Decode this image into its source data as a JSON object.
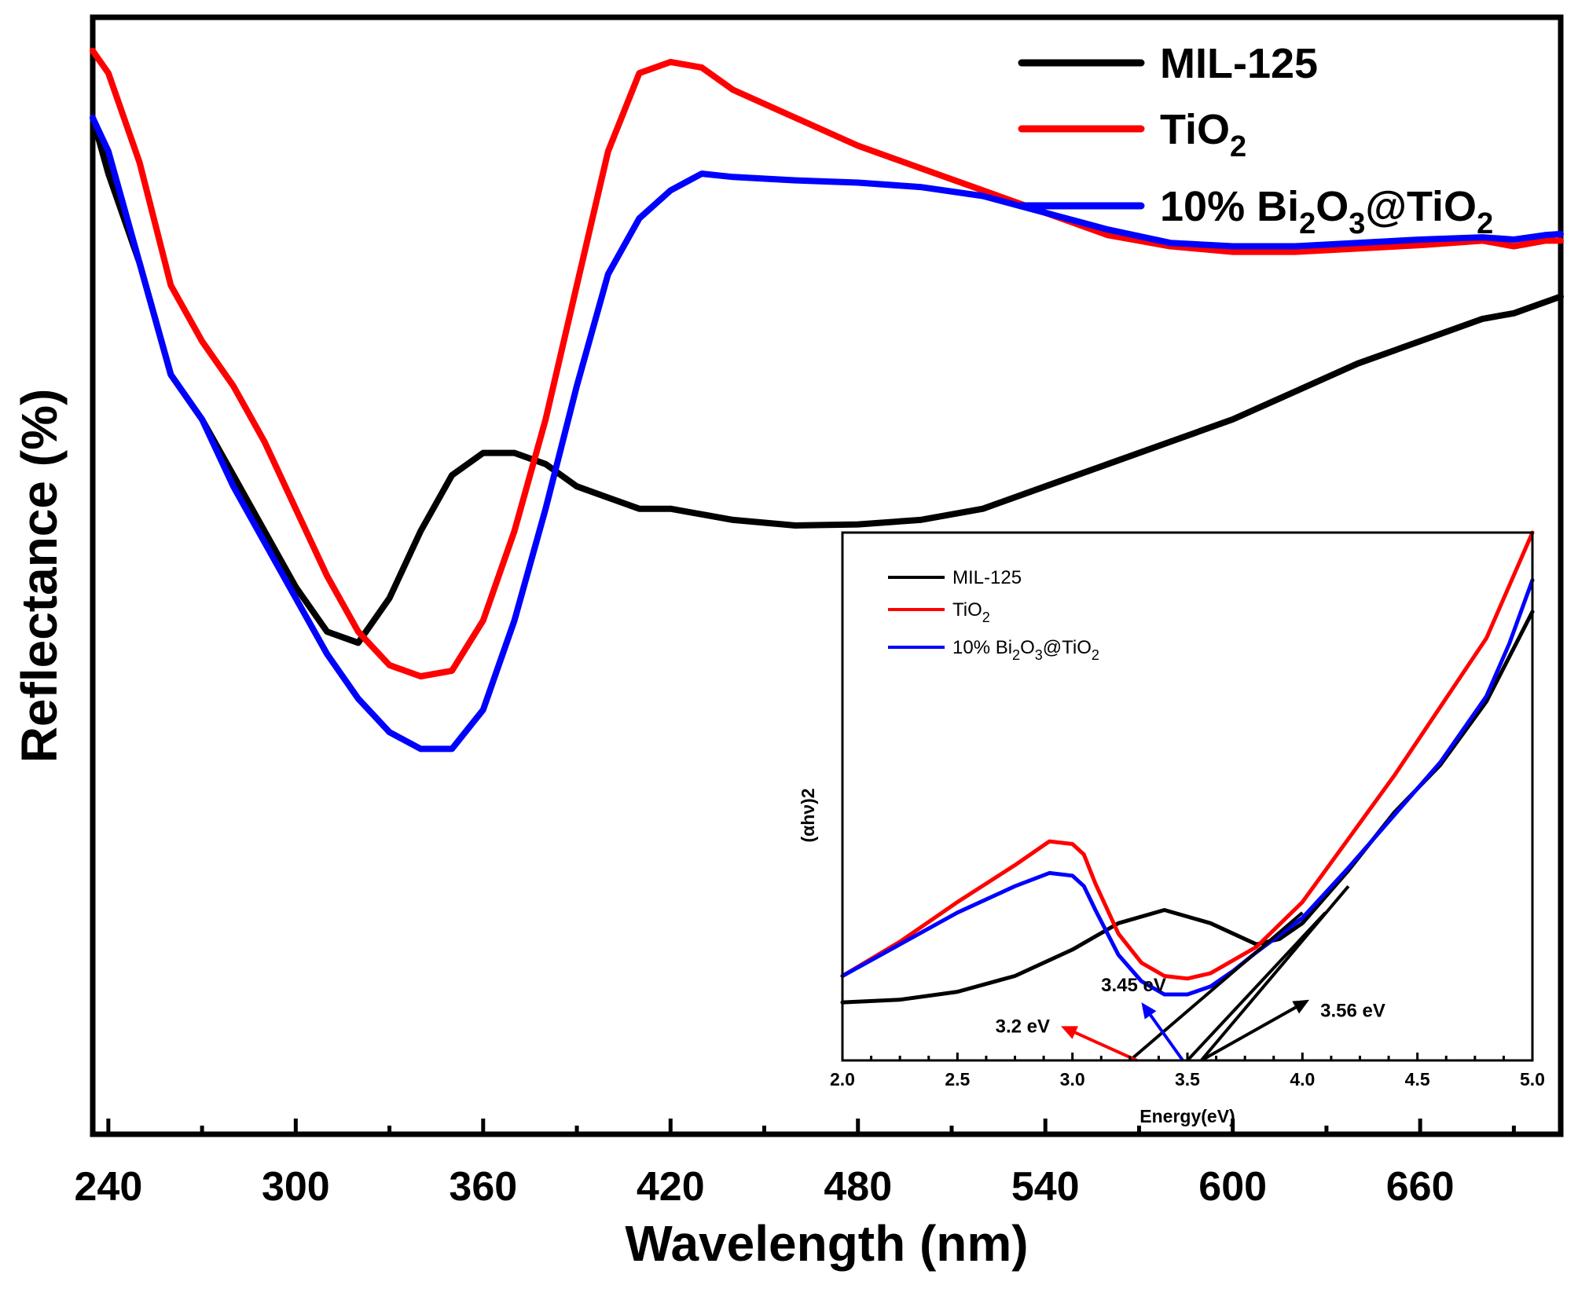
{
  "chart_data": [
    {
      "type": "line",
      "title": "",
      "xlabel": "Wavelength (nm)",
      "ylabel": "Reflectance (%)",
      "xlim": [
        235,
        705
      ],
      "ylim": [
        0,
        100
      ],
      "xticks": [
        240,
        300,
        360,
        420,
        480,
        540,
        600,
        660
      ],
      "yticks_shown": false,
      "legend_position": "top-right",
      "series": [
        {
          "name": "MIL-125",
          "color": "#000000",
          "x": [
            235,
            240,
            250,
            260,
            270,
            280,
            290,
            300,
            310,
            320,
            330,
            340,
            350,
            360,
            370,
            380,
            390,
            400,
            410,
            420,
            440,
            460,
            480,
            500,
            520,
            540,
            560,
            580,
            600,
            620,
            640,
            660,
            680,
            690,
            700,
            705
          ],
          "y": [
            91,
            86,
            78,
            68,
            64,
            59,
            54,
            49,
            45,
            44,
            48,
            54,
            59,
            61,
            61,
            60,
            58,
            57,
            56,
            56,
            55,
            54.5,
            54.6,
            55,
            56,
            58,
            60,
            62,
            64,
            66.5,
            69,
            71,
            73,
            73.5,
            74.5,
            75
          ]
        },
        {
          "name": "TiO2",
          "name_parts": [
            "TiO",
            "2"
          ],
          "color": "#ff0000",
          "x": [
            235,
            240,
            250,
            260,
            270,
            280,
            290,
            300,
            310,
            320,
            330,
            340,
            350,
            360,
            370,
            380,
            390,
            400,
            410,
            420,
            430,
            440,
            460,
            480,
            500,
            520,
            540,
            560,
            580,
            600,
            620,
            640,
            660,
            680,
            690,
            700,
            705
          ],
          "y": [
            97,
            95,
            87,
            76,
            71,
            67,
            62,
            56,
            50,
            45,
            42,
            41,
            41.5,
            46,
            54,
            64,
            76,
            88,
            95,
            96,
            95.5,
            93.5,
            91,
            88.5,
            86.5,
            84.5,
            82.5,
            80.5,
            79.5,
            79,
            79,
            79.3,
            79.6,
            80,
            79.5,
            80,
            80
          ]
        },
        {
          "name": "10% Bi2O3@TiO2",
          "name_parts": [
            "10% Bi",
            "2",
            "O",
            "3",
            "@TiO",
            "2"
          ],
          "color": "#0000ff",
          "x": [
            235,
            240,
            250,
            260,
            270,
            280,
            290,
            300,
            310,
            320,
            330,
            340,
            350,
            360,
            370,
            380,
            390,
            400,
            410,
            420,
            430,
            440,
            460,
            480,
            500,
            520,
            540,
            560,
            580,
            600,
            620,
            640,
            660,
            680,
            690,
            700,
            705
          ],
          "y": [
            91,
            88,
            78,
            68,
            64,
            58,
            53,
            48,
            43,
            39,
            36,
            34.5,
            34.5,
            38,
            46,
            56,
            67,
            77,
            82,
            84.5,
            86,
            85.7,
            85.4,
            85.2,
            84.8,
            84,
            82.5,
            81,
            79.8,
            79.5,
            79.5,
            79.8,
            80.1,
            80.3,
            80.1,
            80.5,
            80.6
          ]
        }
      ]
    },
    {
      "type": "line",
      "title": "",
      "inset": true,
      "xlabel": "Energy(eV)",
      "ylabel": "(αhν)2",
      "xlim": [
        2.0,
        5.0
      ],
      "ylim": [
        0,
        100
      ],
      "xticks": [
        2.0,
        2.5,
        3.0,
        3.5,
        4.0,
        4.5,
        5.0
      ],
      "xtick_labels": [
        "2.0",
        "2.5",
        "3.0",
        "3.5",
        "4.0",
        "4.5",
        "5.0"
      ],
      "legend_position": "top-left",
      "series": [
        {
          "name": "MIL-125",
          "color": "#000000",
          "x": [
            2.0,
            2.25,
            2.5,
            2.75,
            3.0,
            3.2,
            3.4,
            3.6,
            3.8,
            3.9,
            4.0,
            4.2,
            4.4,
            4.6,
            4.8,
            5.0
          ],
          "y": [
            11,
            11.5,
            13,
            16,
            21,
            26,
            28.5,
            26,
            22,
            23,
            26,
            36,
            47,
            56,
            68,
            85
          ]
        },
        {
          "name": "TiO2",
          "name_parts": [
            "TiO",
            "2"
          ],
          "color": "#ff0000",
          "x": [
            2.0,
            2.25,
            2.5,
            2.75,
            2.9,
            3.0,
            3.05,
            3.1,
            3.2,
            3.3,
            3.4,
            3.5,
            3.6,
            3.7,
            3.8,
            4.0,
            4.2,
            4.4,
            4.6,
            4.8,
            4.9,
            5.0
          ],
          "y": [
            16,
            22.5,
            30,
            37,
            41.5,
            41,
            39,
            33.5,
            24,
            18.5,
            16,
            15.5,
            16.5,
            19,
            21.5,
            30,
            42,
            54,
            67,
            80,
            90,
            100
          ]
        },
        {
          "name": "10% Bi2O3@TiO2",
          "name_parts": [
            "10% Bi",
            "2",
            "O",
            "3",
            "@TiO",
            "2"
          ],
          "color": "#0000ff",
          "x": [
            2.0,
            2.25,
            2.5,
            2.75,
            2.9,
            3.0,
            3.05,
            3.1,
            3.2,
            3.3,
            3.4,
            3.5,
            3.6,
            3.7,
            3.8,
            4.0,
            4.2,
            4.4,
            4.6,
            4.8,
            4.9,
            5.0
          ],
          "y": [
            16,
            22,
            28,
            33,
            35.5,
            35,
            33,
            28.5,
            20,
            15,
            12.5,
            12.5,
            14,
            17,
            20.5,
            27,
            36.5,
            46.5,
            56.5,
            69,
            79,
            91
          ]
        }
      ],
      "tangent_lines": [
        {
          "x": [
            3.25,
            4.0
          ],
          "y": [
            0,
            28
          ]
        },
        {
          "x": [
            3.5,
            4.1
          ],
          "y": [
            0,
            28
          ]
        },
        {
          "x": [
            3.56,
            4.2
          ],
          "y": [
            0,
            33
          ]
        }
      ],
      "annotations": [
        {
          "text": "3.2 eV",
          "color": "#ff0000",
          "arrow_from": [
            3.28,
            0
          ],
          "arrow_to": [
            2.95,
            6.5
          ]
        },
        {
          "text": "3.45 eV",
          "color": "#0000ff",
          "arrow_from": [
            3.48,
            0
          ],
          "arrow_to": [
            3.3,
            11
          ]
        },
        {
          "text": "3.56 eV",
          "color": "#000000",
          "arrow_from": [
            3.56,
            0
          ],
          "arrow_to": [
            4.03,
            11.5
          ]
        }
      ]
    }
  ]
}
